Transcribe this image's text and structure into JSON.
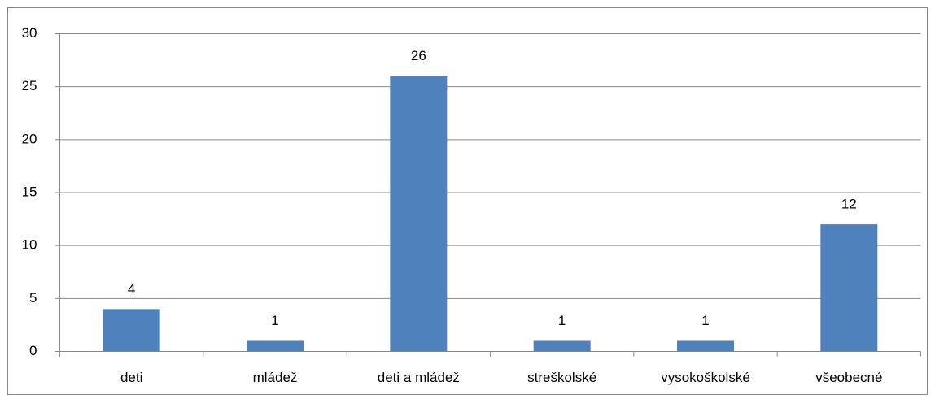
{
  "chart_data": {
    "type": "bar",
    "categories": [
      "deti",
      "mládež",
      "deti a mládež",
      "streškolské",
      "vysokoškolské",
      "všeobecné"
    ],
    "values": [
      4,
      1,
      26,
      1,
      1,
      12
    ],
    "color": "#4f81bd",
    "ylim": [
      0,
      30
    ],
    "yticks": [
      0,
      5,
      10,
      15,
      20,
      25,
      30
    ],
    "grid": true,
    "data_labels": true
  }
}
